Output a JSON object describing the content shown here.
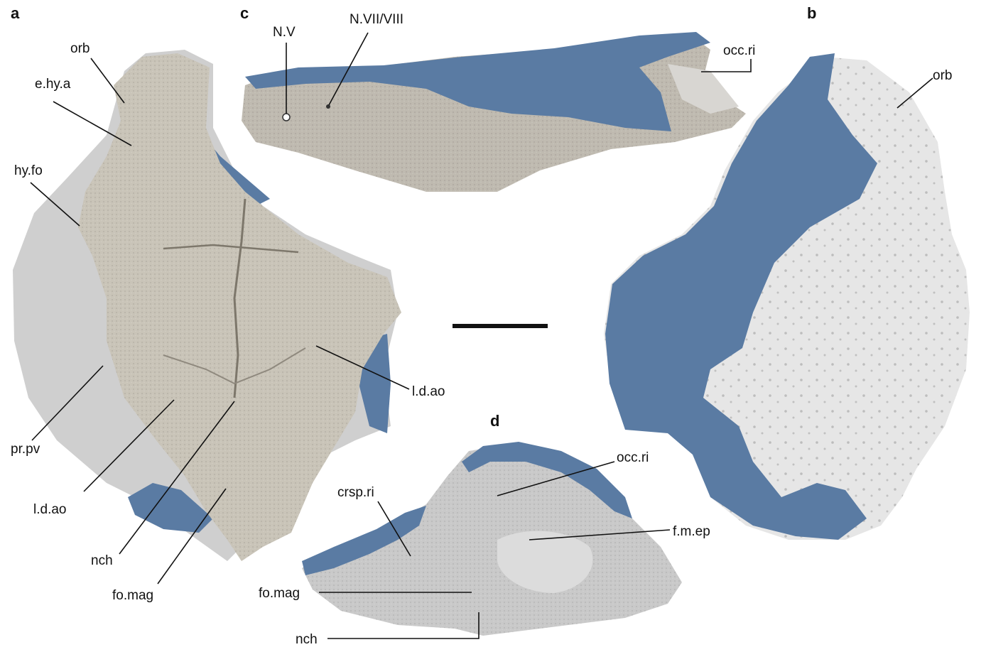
{
  "figure": {
    "panels": {
      "a": "a",
      "b": "b",
      "c": "c",
      "d": "d"
    },
    "labels": {
      "a_orb": "orb",
      "a_ehya": "e.hy.a",
      "a_hyfo": "hy.fo",
      "a_prpv": "pr.pv",
      "a_ldao_right": "l.d.ao",
      "a_ldao_bottom": "l.d.ao",
      "a_nch": "nch",
      "a_fomag": "fo.mag",
      "b_orb": "orb",
      "c_nv": "N.V",
      "c_nvii": "N.VII/VIII",
      "c_occri": "occ.ri",
      "d_occri": "occ.ri",
      "d_crspri": "crsp.ri",
      "d_fmep": "f.m.ep",
      "d_fomag": "fo.mag",
      "d_nch": "nch"
    },
    "colors": {
      "bone": "#c9c4b8",
      "bone_dark": "#a8a296",
      "bone_light": "#e2e0dc",
      "specimen_grey": "#cfcfcf",
      "blue_highlight": "#5a7ba3",
      "b_light": "#e6e6e6"
    }
  }
}
